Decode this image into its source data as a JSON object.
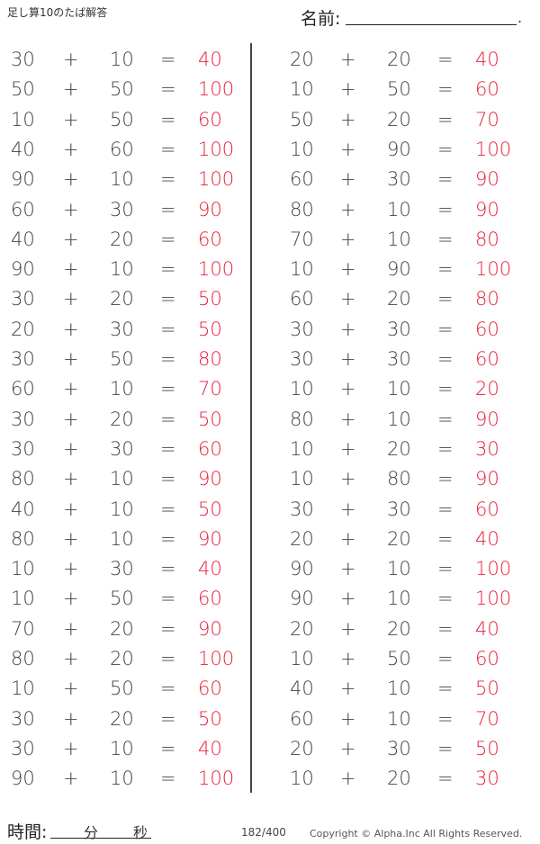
{
  "header": {
    "title": "足し算10のたば解答",
    "name_label": "名前:",
    "name_end": "."
  },
  "footer": {
    "time_label": "時間:",
    "minutes_label": "分",
    "seconds_label": "秒",
    "page": "182/400",
    "copyright": "Copyright ©  Alpha.Inc All Rights Reserved."
  },
  "colors": {
    "answer": "#e8203a",
    "text": "#444444"
  },
  "operators": {
    "plus": "+",
    "equals": "="
  },
  "left": [
    [
      "30",
      "10",
      "40"
    ],
    [
      "50",
      "50",
      "100"
    ],
    [
      "10",
      "50",
      "60"
    ],
    [
      "40",
      "60",
      "100"
    ],
    [
      "90",
      "10",
      "100"
    ],
    [
      "60",
      "30",
      "90"
    ],
    [
      "40",
      "20",
      "60"
    ],
    [
      "90",
      "10",
      "100"
    ],
    [
      "30",
      "20",
      "50"
    ],
    [
      "20",
      "30",
      "50"
    ],
    [
      "30",
      "50",
      "80"
    ],
    [
      "60",
      "10",
      "70"
    ],
    [
      "30",
      "20",
      "50"
    ],
    [
      "30",
      "30",
      "60"
    ],
    [
      "80",
      "10",
      "90"
    ],
    [
      "40",
      "10",
      "50"
    ],
    [
      "80",
      "10",
      "90"
    ],
    [
      "10",
      "30",
      "40"
    ],
    [
      "10",
      "50",
      "60"
    ],
    [
      "70",
      "20",
      "90"
    ],
    [
      "80",
      "20",
      "100"
    ],
    [
      "10",
      "50",
      "60"
    ],
    [
      "30",
      "20",
      "50"
    ],
    [
      "30",
      "10",
      "40"
    ],
    [
      "90",
      "10",
      "100"
    ]
  ],
  "right": [
    [
      "20",
      "20",
      "40"
    ],
    [
      "10",
      "50",
      "60"
    ],
    [
      "50",
      "20",
      "70"
    ],
    [
      "10",
      "90",
      "100"
    ],
    [
      "60",
      "30",
      "90"
    ],
    [
      "80",
      "10",
      "90"
    ],
    [
      "70",
      "10",
      "80"
    ],
    [
      "10",
      "90",
      "100"
    ],
    [
      "60",
      "20",
      "80"
    ],
    [
      "30",
      "30",
      "60"
    ],
    [
      "30",
      "30",
      "60"
    ],
    [
      "10",
      "10",
      "20"
    ],
    [
      "80",
      "10",
      "90"
    ],
    [
      "10",
      "20",
      "30"
    ],
    [
      "10",
      "80",
      "90"
    ],
    [
      "30",
      "30",
      "60"
    ],
    [
      "20",
      "20",
      "40"
    ],
    [
      "90",
      "10",
      "100"
    ],
    [
      "90",
      "10",
      "100"
    ],
    [
      "20",
      "20",
      "40"
    ],
    [
      "10",
      "50",
      "60"
    ],
    [
      "40",
      "10",
      "50"
    ],
    [
      "60",
      "10",
      "70"
    ],
    [
      "20",
      "30",
      "50"
    ],
    [
      "10",
      "20",
      "30"
    ]
  ]
}
